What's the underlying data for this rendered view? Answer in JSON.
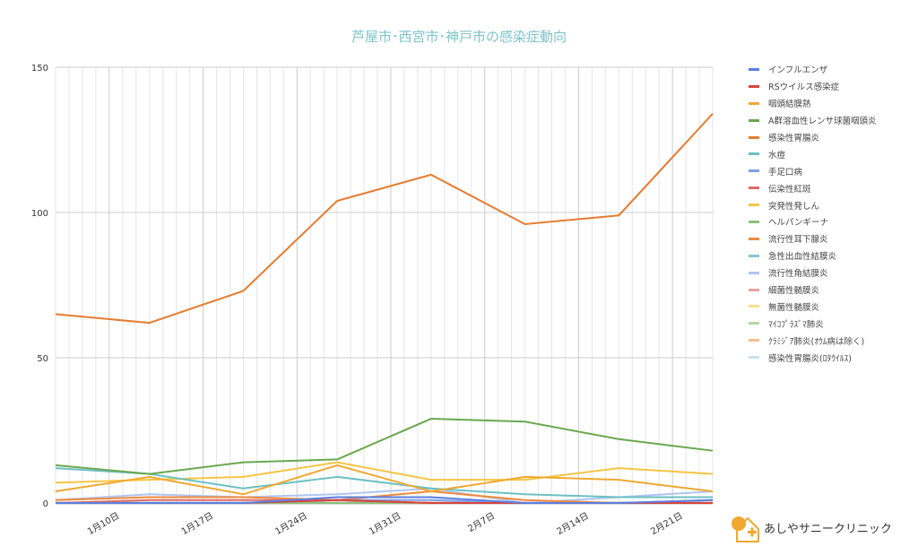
{
  "chart_data": {
    "type": "line",
    "title": "芦屋市･西宮市･神戸市の感染症動向",
    "x": [
      "1/6",
      "1/13",
      "1/20",
      "1/27",
      "2/3",
      "2/10",
      "2/17",
      "2/24"
    ],
    "x_tick_labels": [
      "1月10日",
      "1月17日",
      "1月24日",
      "1月31日",
      "2月7日",
      "2月14日",
      "2月21日"
    ],
    "y_ticks": [
      "0",
      "50",
      "100",
      "150"
    ],
    "ylim": [
      0,
      150
    ],
    "grid": true,
    "legend": "right",
    "series": [
      {
        "name": "インフルエンザ",
        "color": "#5b7fe0",
        "values": [
          0,
          0,
          0,
          2,
          2,
          0,
          0,
          1
        ]
      },
      {
        "name": "RSウイルス感染症",
        "color": "#d9443a",
        "values": [
          0,
          0,
          0,
          1,
          0,
          0,
          0,
          0
        ]
      },
      {
        "name": "咽頭結膜熱",
        "color": "#f0a830",
        "values": [
          4,
          9,
          3,
          13,
          4,
          9,
          8,
          4
        ]
      },
      {
        "name": "A群溶血性レンサ球菌咽頭炎",
        "color": "#6aa84f",
        "values": [
          13,
          10,
          14,
          15,
          29,
          28,
          22,
          18
        ]
      },
      {
        "name": "感染性胃腸炎",
        "color": "#e67c30",
        "values": [
          65,
          62,
          73,
          104,
          113,
          96,
          99,
          134
        ]
      },
      {
        "name": "水痘",
        "color": "#6cc0c4",
        "values": [
          12,
          10,
          5,
          9,
          5,
          3,
          2,
          2
        ]
      },
      {
        "name": "手足口病",
        "color": "#7f9ee8",
        "values": [
          0,
          0,
          0,
          1,
          1,
          0,
          0,
          1
        ]
      },
      {
        "name": "伝染性紅斑",
        "color": "#dd6b66",
        "values": [
          0,
          1,
          1,
          1,
          0,
          0,
          0,
          0
        ]
      },
      {
        "name": "突発性発しん",
        "color": "#f6c543",
        "values": [
          7,
          8,
          9,
          14,
          8,
          8,
          12,
          10
        ]
      },
      {
        "name": "ヘルパンギーナ",
        "color": "#8cc07a",
        "values": [
          0,
          0,
          0,
          0,
          0,
          0,
          0,
          0
        ]
      },
      {
        "name": "流行性耳下腺炎",
        "color": "#f08a3c",
        "values": [
          1,
          2,
          2,
          1,
          4,
          1,
          0,
          0
        ]
      },
      {
        "name": "急性出血性結膜炎",
        "color": "#8ac6d6",
        "values": [
          0,
          0,
          0,
          0,
          0,
          0,
          0,
          0
        ]
      },
      {
        "name": "流行性角結膜炎",
        "color": "#aec6f2",
        "values": [
          1,
          3,
          2,
          3,
          5,
          0,
          2,
          4
        ]
      },
      {
        "name": "細菌性髄膜炎",
        "color": "#eba3a0",
        "values": [
          0,
          0,
          0,
          0,
          0,
          0,
          0,
          0
        ]
      },
      {
        "name": "無菌性髄膜炎",
        "color": "#fbdf8a",
        "values": [
          0,
          0,
          0,
          0,
          0,
          0,
          0,
          0
        ]
      },
      {
        "name": "ﾏｲｺﾌﾟﾗｽﾞﾏ肺炎",
        "color": "#b5d8a8",
        "values": [
          0,
          0,
          0,
          0,
          0,
          0,
          0,
          0
        ]
      },
      {
        "name": "ｸﾗﾐｼﾞｱ肺炎(ｵｳﾑ病は除く)",
        "color": "#f5c08f",
        "values": [
          0,
          0,
          0,
          0,
          0,
          0,
          0,
          0
        ]
      },
      {
        "name": "感染性胃腸炎(ﾛﾀｳｲﾙｽ)",
        "color": "#c5e3e6",
        "values": [
          0,
          0,
          0,
          0,
          0,
          0,
          0,
          0
        ]
      }
    ]
  },
  "logo": {
    "text": "あしやサニークリニック",
    "badge": "Sunny"
  }
}
